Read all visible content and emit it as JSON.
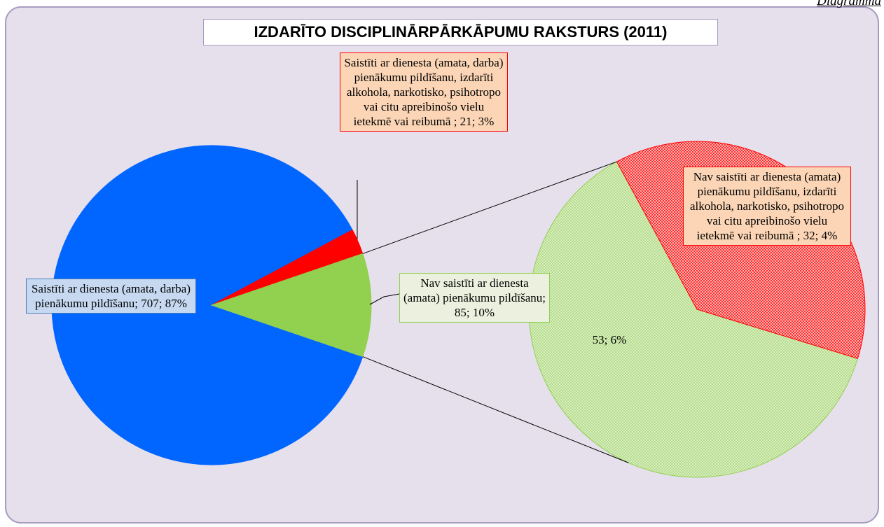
{
  "corner_text": "Diagramma",
  "chart_data": {
    "type": "pie_of_pie",
    "title": "IZDARĪTO DISCIPLINĀRPĀRKĀPUMU RAKSTURS (2011)",
    "main": {
      "values": [
        707,
        21,
        85
      ],
      "colors": [
        "#0066ff",
        "#ff0000",
        "#92d050"
      ],
      "value_labels": [
        "Saistīti ar dienesta (amata, darba) pienākumu pildīšanu; 707; 87%",
        "Saistīti ar dienesta (amata, darba) pienākumu pildīšanu, izdarīti alkohola, narkotisko, psihotropo vai citu apreibinošo vielu ietekmē vai reibumā ; 21; 3%",
        "Nav saistīti ar dienesta (amata) pienākumu pildīšanu; 85; 10%"
      ]
    },
    "secondary": {
      "values": [
        53,
        32
      ],
      "colors": [
        "#92d050",
        "#ff0000"
      ],
      "value_labels": [
        "53; 6%",
        "Nav saistīti ar dienesta (amata) pienākumu pildīšanu, izdarīti alkohola, narkotisko, psihotropo vai citu apreibinošo vielu ietekmē vai reibumā ; 32; 4%"
      ]
    }
  }
}
